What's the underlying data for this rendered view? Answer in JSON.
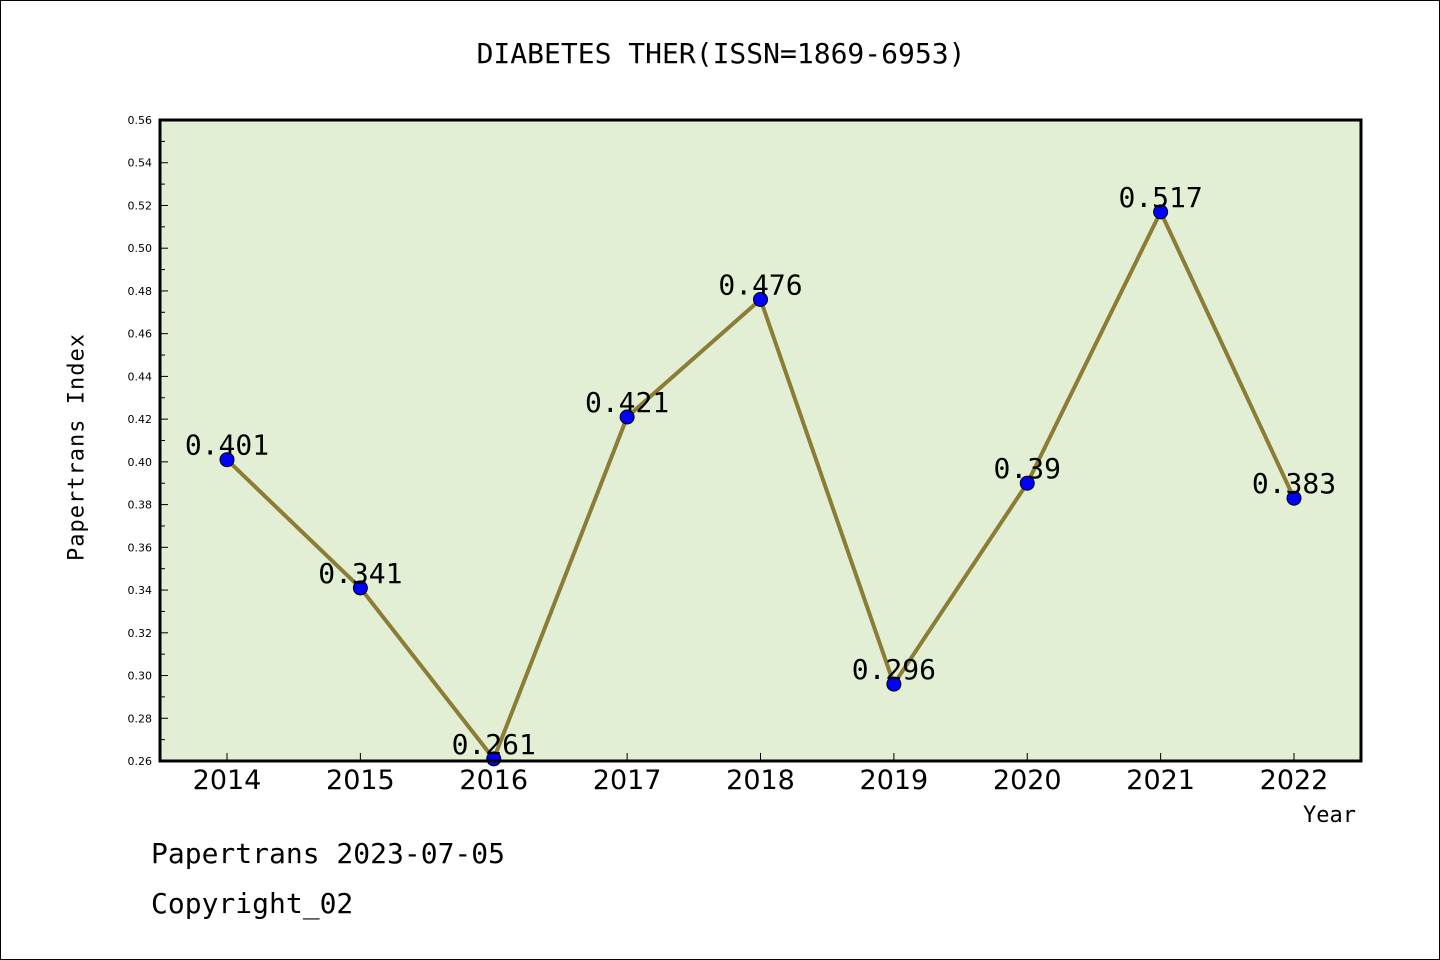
{
  "chart_data": {
    "type": "line",
    "title": "DIABETES THER(ISSN=1869-6953)",
    "xlabel": "Year",
    "ylabel": "Papertrans Index",
    "categories": [
      "2014",
      "2015",
      "2016",
      "2017",
      "2018",
      "2019",
      "2020",
      "2021",
      "2022"
    ],
    "series": [
      {
        "values": [
          0.401,
          0.341,
          0.261,
          0.421,
          0.476,
          0.296,
          0.39,
          0.517,
          0.383
        ]
      }
    ],
    "data_labels": [
      "0.401",
      "0.341",
      "0.261",
      "0.421",
      "0.476",
      "0.296",
      "0.39",
      "0.517",
      "0.383"
    ],
    "ylim": [
      0.26,
      0.56
    ],
    "yticks": [
      0.26,
      0.28,
      0.3,
      0.32,
      0.34,
      0.36,
      0.38,
      0.4,
      0.42,
      0.44,
      0.46,
      0.48,
      0.5,
      0.52,
      0.54,
      0.56
    ],
    "ytick_labels": [
      "0.26",
      "0.28",
      "0.30",
      "0.32",
      "0.34",
      "0.36",
      "0.38",
      "0.40",
      "0.42",
      "0.44",
      "0.46",
      "0.48",
      "0.50",
      "0.52",
      "0.54",
      "0.56"
    ],
    "grid": false,
    "colors": {
      "plot_background": "#e2efd4",
      "line": "#8b7d35",
      "marker": "#0000ff"
    }
  },
  "footer": {
    "line1": "Papertrans 2023-07-05",
    "line2": "Copyright_02"
  }
}
